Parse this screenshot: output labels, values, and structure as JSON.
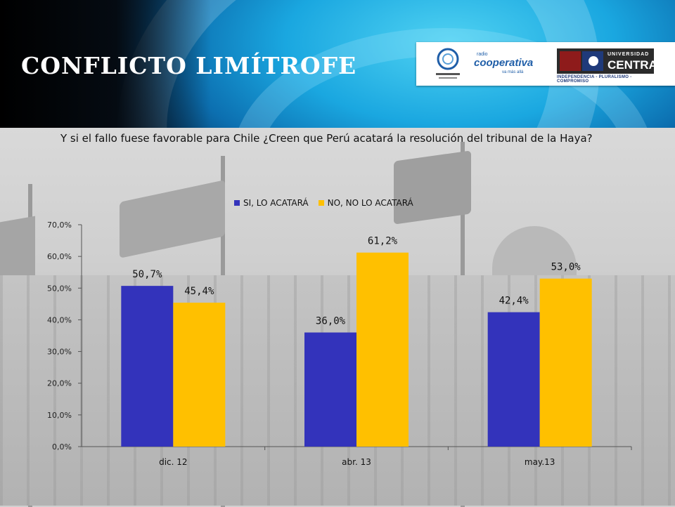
{
  "header": {
    "title": "CONFLICTO LIMÍTROFE",
    "logos": {
      "cooperativa_radio": "radio",
      "cooperativa_name": "cooperativa",
      "cooperativa_tag": "va más allá",
      "universidad_top": "UNIVERSIDAD",
      "universidad_name": "CENTRAL",
      "universidad_motto": "INDEPENDENCIA - PLURALISMO - COMPROMISO"
    }
  },
  "question": "Y si el fallo fuese favorable para Chile ¿Creen que Perú acatará la resolución del tribunal de la Haya?",
  "colors": {
    "series_si": "#3333bb",
    "series_no": "#ffc000",
    "header_blue": "#1aa7e0"
  },
  "chart_data": {
    "type": "bar",
    "categories": [
      "dic. 12",
      "abr. 13",
      "may.13"
    ],
    "series": [
      {
        "name": "SI, LO ACATARÁ",
        "values": [
          50.7,
          36.0,
          42.4
        ],
        "labels": [
          "50,7%",
          "36,0%",
          "42,4%"
        ]
      },
      {
        "name": "NO, NO LO ACATARÁ",
        "values": [
          45.4,
          61.2,
          53.0
        ],
        "labels": [
          "45,4%",
          "61,2%",
          "53,0%"
        ]
      }
    ],
    "yticks": [
      "0,0%",
      "10,0%",
      "20,0%",
      "30,0%",
      "40,0%",
      "50,0%",
      "60,0%",
      "70,0%"
    ],
    "ylim": [
      0,
      70
    ],
    "legend_position": "top"
  }
}
